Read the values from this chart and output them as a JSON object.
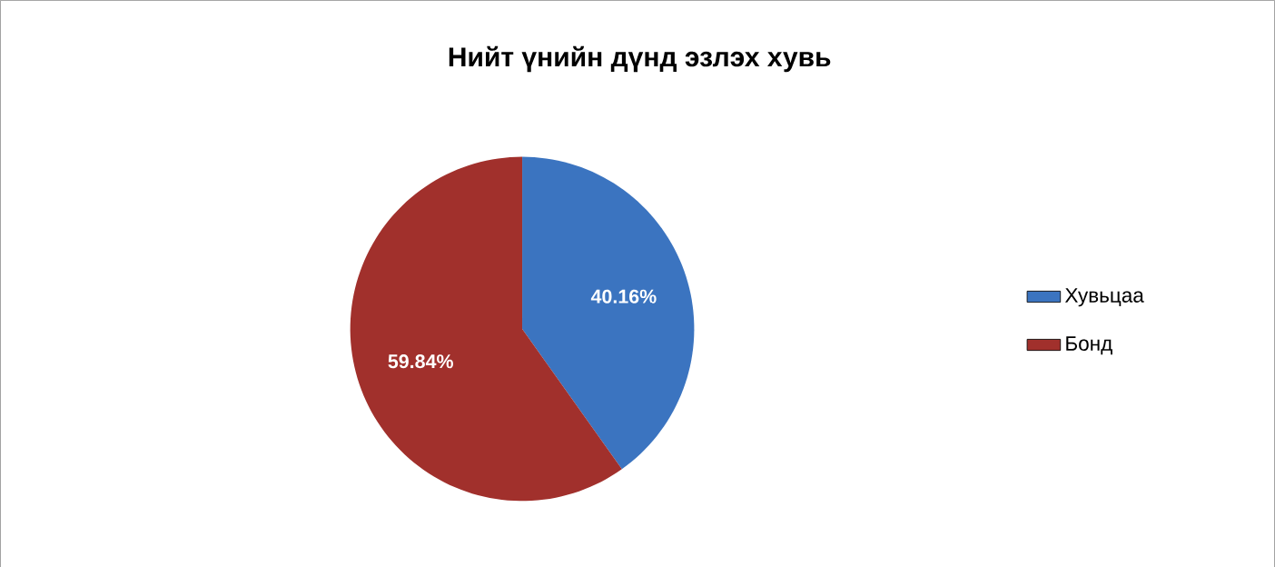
{
  "chart_data": {
    "type": "pie",
    "title": "Нийт үнийн дүнд эзлэх хувь",
    "categories": [
      "Хувьцаа",
      "Бонд"
    ],
    "values": [
      40.16,
      59.84
    ],
    "colors": [
      "#3b74c0",
      "#a1302c"
    ],
    "value_labels": [
      "40.16%",
      "59.84%"
    ],
    "legend": "right"
  }
}
